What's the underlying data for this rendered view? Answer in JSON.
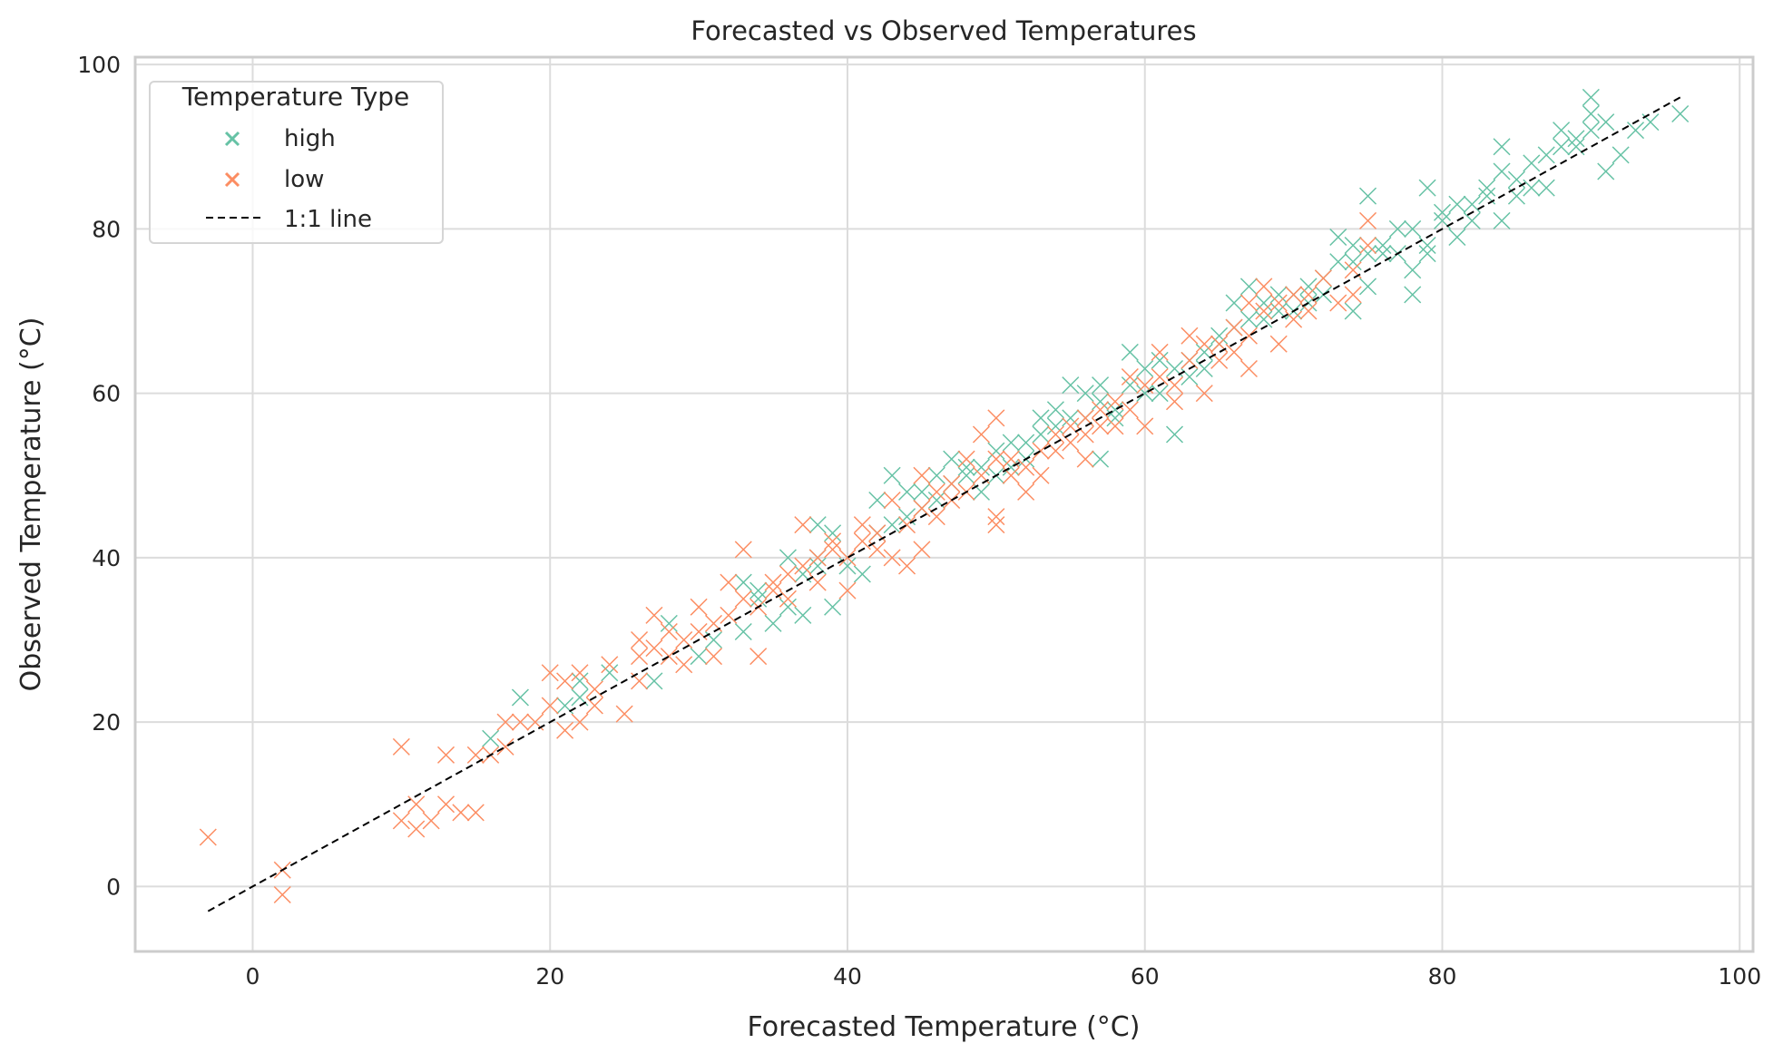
{
  "chart_data": {
    "type": "scatter",
    "title": "Forecasted vs Observed Temperatures",
    "xlabel": "Forecasted Temperature (°C)",
    "ylabel": "Observed Temperature (°C)",
    "xlim": [
      -7.9,
      100.9
    ],
    "ylim": [
      -7.9,
      100.9
    ],
    "xticks": [
      0,
      20,
      40,
      60,
      80,
      100
    ],
    "yticks": [
      0,
      20,
      40,
      60,
      80,
      100
    ],
    "grid": true,
    "legend": {
      "title": "Temperature Type",
      "placement": "top-left"
    },
    "marker": "x",
    "series": [
      {
        "name": "high",
        "color": "#66c2a5",
        "points": [
          [
            16,
            18
          ],
          [
            18,
            23
          ],
          [
            21,
            22
          ],
          [
            22,
            25
          ],
          [
            22,
            23
          ],
          [
            24,
            26
          ],
          [
            27,
            25
          ],
          [
            28,
            32
          ],
          [
            30,
            28
          ],
          [
            31,
            30
          ],
          [
            33,
            37
          ],
          [
            33,
            31
          ],
          [
            34,
            36
          ],
          [
            34,
            35
          ],
          [
            35,
            32
          ],
          [
            36,
            40
          ],
          [
            36,
            34
          ],
          [
            37,
            33
          ],
          [
            37,
            38
          ],
          [
            38,
            44
          ],
          [
            38,
            40
          ],
          [
            38,
            39
          ],
          [
            39,
            34
          ],
          [
            39,
            43
          ],
          [
            40,
            39
          ],
          [
            41,
            38
          ],
          [
            42,
            47
          ],
          [
            42,
            43
          ],
          [
            43,
            50
          ],
          [
            43,
            44
          ],
          [
            44,
            45
          ],
          [
            44,
            48
          ],
          [
            45,
            48
          ],
          [
            45,
            46
          ],
          [
            46,
            47
          ],
          [
            46,
            50
          ],
          [
            47,
            52
          ],
          [
            47,
            49
          ],
          [
            48,
            51
          ],
          [
            48,
            50
          ],
          [
            49,
            48
          ],
          [
            49,
            51
          ],
          [
            50,
            50
          ],
          [
            50,
            53
          ],
          [
            51,
            54
          ],
          [
            51,
            51
          ],
          [
            52,
            52
          ],
          [
            52,
            54
          ],
          [
            53,
            57
          ],
          [
            53,
            55
          ],
          [
            54,
            56
          ],
          [
            54,
            58
          ],
          [
            55,
            61
          ],
          [
            55,
            57
          ],
          [
            56,
            57
          ],
          [
            56,
            60
          ],
          [
            57,
            52
          ],
          [
            57,
            61
          ],
          [
            57,
            59
          ],
          [
            58,
            58
          ],
          [
            58,
            57
          ],
          [
            59,
            65
          ],
          [
            59,
            61
          ],
          [
            60,
            63
          ],
          [
            60,
            60
          ],
          [
            61,
            60
          ],
          [
            61,
            64
          ],
          [
            62,
            55
          ],
          [
            62,
            63
          ],
          [
            63,
            62
          ],
          [
            63,
            64
          ],
          [
            64,
            65
          ],
          [
            64,
            63
          ],
          [
            65,
            67
          ],
          [
            65,
            66
          ],
          [
            66,
            71
          ],
          [
            66,
            68
          ],
          [
            67,
            73
          ],
          [
            67,
            69
          ],
          [
            68,
            69
          ],
          [
            68,
            71
          ],
          [
            69,
            70
          ],
          [
            69,
            72
          ],
          [
            70,
            72
          ],
          [
            70,
            70
          ],
          [
            71,
            71
          ],
          [
            71,
            73
          ],
          [
            72,
            74
          ],
          [
            72,
            72
          ],
          [
            73,
            79
          ],
          [
            73,
            76
          ],
          [
            74,
            70
          ],
          [
            74,
            76
          ],
          [
            74,
            78
          ],
          [
            75,
            84
          ],
          [
            75,
            73
          ],
          [
            75,
            77
          ],
          [
            76,
            78
          ],
          [
            76,
            77
          ],
          [
            77,
            77
          ],
          [
            77,
            80
          ],
          [
            78,
            72
          ],
          [
            78,
            80
          ],
          [
            78,
            75
          ],
          [
            79,
            85
          ],
          [
            79,
            77
          ],
          [
            79,
            78
          ],
          [
            80,
            81
          ],
          [
            80,
            82
          ],
          [
            81,
            79
          ],
          [
            81,
            83
          ],
          [
            82,
            83
          ],
          [
            82,
            81
          ],
          [
            83,
            85
          ],
          [
            83,
            84
          ],
          [
            84,
            90
          ],
          [
            84,
            81
          ],
          [
            84,
            87
          ],
          [
            85,
            86
          ],
          [
            85,
            84
          ],
          [
            86,
            88
          ],
          [
            86,
            85
          ],
          [
            87,
            85
          ],
          [
            87,
            89
          ],
          [
            88,
            92
          ],
          [
            88,
            90
          ],
          [
            89,
            90
          ],
          [
            89,
            91
          ],
          [
            90,
            96
          ],
          [
            90,
            94
          ],
          [
            90,
            92
          ],
          [
            91,
            87
          ],
          [
            91,
            93
          ],
          [
            92,
            89
          ],
          [
            93,
            92
          ],
          [
            94,
            93
          ],
          [
            96,
            94
          ]
        ]
      },
      {
        "name": "low",
        "color": "#fc8d62",
        "points": [
          [
            -3,
            6
          ],
          [
            2,
            2
          ],
          [
            2,
            -1
          ],
          [
            10,
            17
          ],
          [
            10,
            8
          ],
          [
            11,
            7
          ],
          [
            11,
            10
          ],
          [
            12,
            8
          ],
          [
            13,
            16
          ],
          [
            13,
            10
          ],
          [
            14,
            9
          ],
          [
            15,
            9
          ],
          [
            15,
            16
          ],
          [
            16,
            16
          ],
          [
            17,
            17
          ],
          [
            17,
            20
          ],
          [
            18,
            20
          ],
          [
            19,
            20
          ],
          [
            20,
            26
          ],
          [
            20,
            22
          ],
          [
            21,
            19
          ],
          [
            21,
            25
          ],
          [
            22,
            20
          ],
          [
            22,
            26
          ],
          [
            23,
            24
          ],
          [
            23,
            22
          ],
          [
            24,
            27
          ],
          [
            25,
            21
          ],
          [
            26,
            25
          ],
          [
            26,
            30
          ],
          [
            26,
            28
          ],
          [
            27,
            33
          ],
          [
            27,
            29
          ],
          [
            28,
            31
          ],
          [
            28,
            28
          ],
          [
            29,
            27
          ],
          [
            29,
            30
          ],
          [
            30,
            34
          ],
          [
            30,
            31
          ],
          [
            31,
            28
          ],
          [
            31,
            32
          ],
          [
            32,
            37
          ],
          [
            32,
            33
          ],
          [
            33,
            41
          ],
          [
            33,
            35
          ],
          [
            34,
            28
          ],
          [
            34,
            34
          ],
          [
            35,
            36
          ],
          [
            35,
            37
          ],
          [
            36,
            38
          ],
          [
            36,
            35
          ],
          [
            37,
            44
          ],
          [
            37,
            39
          ],
          [
            38,
            40
          ],
          [
            38,
            37
          ],
          [
            39,
            41
          ],
          [
            39,
            42
          ],
          [
            40,
            36
          ],
          [
            40,
            40
          ],
          [
            41,
            44
          ],
          [
            41,
            42
          ],
          [
            42,
            43
          ],
          [
            42,
            41
          ],
          [
            43,
            40
          ],
          [
            43,
            47
          ],
          [
            44,
            39
          ],
          [
            44,
            44
          ],
          [
            45,
            50
          ],
          [
            45,
            41
          ],
          [
            45,
            46
          ],
          [
            46,
            45
          ],
          [
            46,
            48
          ],
          [
            47,
            49
          ],
          [
            47,
            47
          ],
          [
            48,
            52
          ],
          [
            48,
            48
          ],
          [
            49,
            55
          ],
          [
            49,
            50
          ],
          [
            50,
            57
          ],
          [
            50,
            44
          ],
          [
            50,
            45
          ],
          [
            50,
            52
          ],
          [
            51,
            52
          ],
          [
            51,
            50
          ],
          [
            52,
            48
          ],
          [
            52,
            51
          ],
          [
            53,
            50
          ],
          [
            53,
            53
          ],
          [
            54,
            53
          ],
          [
            54,
            55
          ],
          [
            55,
            54
          ],
          [
            55,
            56
          ],
          [
            56,
            57
          ],
          [
            56,
            52
          ],
          [
            56,
            55
          ],
          [
            57,
            58
          ],
          [
            57,
            56
          ],
          [
            58,
            56
          ],
          [
            58,
            59
          ],
          [
            59,
            62
          ],
          [
            59,
            58
          ],
          [
            60,
            56
          ],
          [
            60,
            61
          ],
          [
            61,
            65
          ],
          [
            61,
            62
          ],
          [
            62,
            59
          ],
          [
            62,
            61
          ],
          [
            63,
            67
          ],
          [
            63,
            64
          ],
          [
            64,
            60
          ],
          [
            64,
            66
          ],
          [
            65,
            66
          ],
          [
            65,
            64
          ],
          [
            66,
            68
          ],
          [
            66,
            65
          ],
          [
            67,
            63
          ],
          [
            67,
            71
          ],
          [
            67,
            67
          ],
          [
            68,
            73
          ],
          [
            68,
            70
          ],
          [
            69,
            66
          ],
          [
            69,
            71
          ],
          [
            70,
            72
          ],
          [
            70,
            69
          ],
          [
            71,
            70
          ],
          [
            71,
            72
          ],
          [
            72,
            74
          ],
          [
            73,
            71
          ],
          [
            74,
            72
          ],
          [
            74,
            75
          ],
          [
            75,
            81
          ],
          [
            75,
            78
          ]
        ]
      }
    ],
    "reference_line": {
      "name": "1:1 line",
      "style": "dashed",
      "color": "#000000",
      "x": [
        -3,
        96
      ],
      "y": [
        -3,
        96
      ]
    }
  }
}
